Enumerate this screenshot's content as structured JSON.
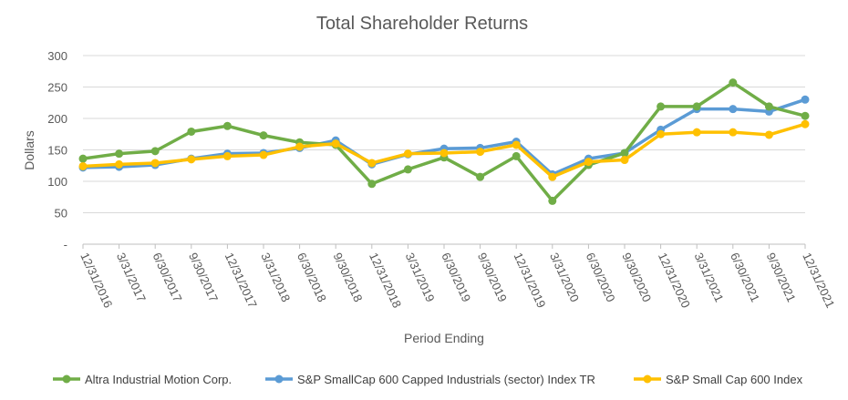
{
  "chart_data": {
    "type": "line",
    "title": "Total Shareholder Returns",
    "xlabel": "Period Ending",
    "ylabel": "Dollars",
    "ylim": [
      0,
      300
    ],
    "yticks": [
      {
        "value": 0,
        "label": "-"
      },
      {
        "value": 50,
        "label": "50"
      },
      {
        "value": 100,
        "label": "100"
      },
      {
        "value": 150,
        "label": "150"
      },
      {
        "value": 200,
        "label": "200"
      },
      {
        "value": 250,
        "label": "250"
      },
      {
        "value": 300,
        "label": "300"
      }
    ],
    "grid": true,
    "legend_position": "bottom",
    "categories": [
      "12/31/2016",
      "3/31/2017",
      "6/30/2017",
      "9/30/2017",
      "12/31/2017",
      "3/31/2018",
      "6/30/2018",
      "9/30/2018",
      "12/31/2018",
      "3/31/2019",
      "6/30/2019",
      "9/30/2019",
      "12/31/2019",
      "3/31/2020",
      "6/30/2020",
      "9/30/2020",
      "12/31/2020",
      "3/31/2021",
      "6/30/2021",
      "9/30/2021",
      "12/31/2021"
    ],
    "series": [
      {
        "name": "S&P SmallCap 600 Capped Industrials (sector) Index TR",
        "color": "#5b9bd5",
        "values": [
          122,
          123,
          126,
          136,
          144,
          145,
          153,
          165,
          127,
          143,
          152,
          153,
          163,
          111,
          136,
          145,
          182,
          215,
          215,
          211,
          230
        ]
      },
      {
        "name": "Altra Industrial Motion Corp.",
        "color": "#70ad47",
        "values": [
          136,
          144,
          148,
          179,
          188,
          173,
          162,
          158,
          96,
          119,
          138,
          107,
          140,
          69,
          126,
          145,
          219,
          219,
          257,
          219,
          204
        ]
      },
      {
        "name": "S&P Small Cap 600 Index",
        "color": "#ffc000",
        "values": [
          124,
          127,
          129,
          135,
          140,
          142,
          155,
          160,
          129,
          144,
          145,
          147,
          158,
          107,
          131,
          134,
          175,
          178,
          178,
          174,
          191
        ]
      }
    ],
    "legend_order": [
      1,
      0,
      2
    ]
  }
}
